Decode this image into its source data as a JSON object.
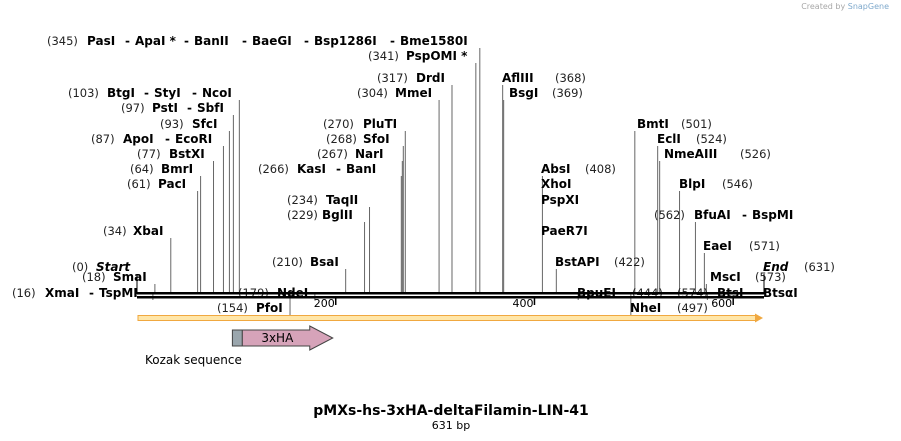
{
  "credit": {
    "prefix": "Created by",
    "brand": "SnapGene"
  },
  "sequence": {
    "name": "pMXs-hs-3xHA-deltaFilamin-LIN-41",
    "length_label": "631 bp",
    "total_bp": 631
  },
  "ends": [
    {
      "pos_label": "(0)",
      "name": "Start",
      "bp": 0
    },
    {
      "pos_label": "(631)",
      "name": "End",
      "bp": 631
    }
  ],
  "sites": [
    {
      "text": "PasI",
      "pos": "(345)",
      "bp": 345,
      "row": 0,
      "star": false,
      "first": true
    },
    {
      "text": "ApaI",
      "bp": 345,
      "row": 0,
      "star": true
    },
    {
      "text": "BanII",
      "bp": 345,
      "row": 0
    },
    {
      "text": "BaeGI",
      "bp": 345,
      "row": 0
    },
    {
      "text": "Bsp1286I",
      "bp": 345,
      "row": 0
    },
    {
      "text": "Bme1580I",
      "bp": 345,
      "row": 0
    },
    {
      "text": "PspOMI",
      "pos": "(341)",
      "bp": 341,
      "row": 1,
      "star": true,
      "first": true
    },
    {
      "text": "DrdI",
      "pos": "(317)",
      "bp": 317,
      "row": 2,
      "first": true
    },
    {
      "text": "AflIII",
      "pos": "(368)",
      "bp": 368,
      "row": 2,
      "first": true,
      "posAfter": true
    },
    {
      "text": "BtgI",
      "pos": "(103)",
      "bp": 103,
      "row": 3,
      "first": true
    },
    {
      "text": "StyI",
      "bp": 103,
      "row": 3
    },
    {
      "text": "NcoI",
      "bp": 103,
      "row": 3
    },
    {
      "text": "MmeI",
      "pos": "(304)",
      "bp": 304,
      "row": 3,
      "first": true
    },
    {
      "text": "BsgI",
      "pos": "(369)",
      "bp": 369,
      "row": 3,
      "first": true,
      "posAfter": true
    },
    {
      "text": "PstI",
      "pos": "(97)",
      "bp": 97,
      "row": 4,
      "first": true
    },
    {
      "text": "SbfI",
      "bp": 97,
      "row": 4
    },
    {
      "text": "SfcI",
      "pos": "(93)",
      "bp": 93,
      "row": 5,
      "first": true
    },
    {
      "text": "PluTI",
      "pos": "(270)",
      "bp": 270,
      "row": 5,
      "first": true
    },
    {
      "text": "BmtI",
      "pos": "(501)",
      "bp": 501,
      "row": 5,
      "first": true,
      "posAfter": true
    },
    {
      "text": "ApoI",
      "pos": "(87)",
      "bp": 87,
      "row": 6,
      "first": true
    },
    {
      "text": "EcoRI",
      "bp": 87,
      "row": 6
    },
    {
      "text": "SfoI",
      "pos": "(268)",
      "bp": 268,
      "row": 6,
      "first": true
    },
    {
      "text": "EclI",
      "pos": "(524)",
      "bp": 524,
      "row": 6,
      "first": true,
      "posAfter": true
    },
    {
      "text": "BstXI",
      "pos": "(77)",
      "bp": 77,
      "row": 7,
      "first": true
    },
    {
      "text": "NarI",
      "pos": "(267)",
      "bp": 267,
      "row": 7,
      "first": true
    },
    {
      "text": "NmeAIII",
      "pos": "(526)",
      "bp": 526,
      "row": 7,
      "first": true,
      "posAfter": true
    },
    {
      "text": "BmrI",
      "pos": "(64)",
      "bp": 64,
      "row": 8,
      "first": true
    },
    {
      "text": "KasI",
      "pos": "(266)",
      "bp": 266,
      "row": 8,
      "first": true
    },
    {
      "text": "BanI",
      "bp": 266,
      "row": 8
    },
    {
      "text": "AbsI",
      "pos": "(408)",
      "bp": 408,
      "row": 8,
      "first": true,
      "posAfter": true
    },
    {
      "text": "PacI",
      "pos": "(61)",
      "bp": 61,
      "row": 9,
      "first": true
    },
    {
      "text": "BlpI",
      "pos": "(546)",
      "bp": 546,
      "row": 9,
      "first": true,
      "posAfter": true
    },
    {
      "text": "XhoI",
      "bp": 408,
      "row": 9,
      "first": true
    },
    {
      "text": "TaqII",
      "pos": "(234)",
      "bp": 234,
      "row": 10,
      "first": true
    },
    {
      "text": "PspXI",
      "bp": 408,
      "row": 10,
      "first": true
    },
    {
      "text": "BglII",
      "pos": "(229)",
      "bp": 229,
      "row": 11,
      "first": true
    },
    {
      "text": "BfuAI",
      "pos": "(562)",
      "bp": 562,
      "row": 11,
      "first": true
    },
    {
      "text": "BspMI",
      "bp": 562,
      "row": 11,
      "posAfter": true
    },
    {
      "text": "XbaI",
      "pos": "(34)",
      "bp": 34,
      "row": 12,
      "first": true
    },
    {
      "text": "PaeR7I",
      "bp": 408,
      "row": 12,
      "first": true
    },
    {
      "text": "EaeI",
      "pos": "(571)",
      "bp": 571,
      "row": 13,
      "first": true,
      "posAfter": true
    },
    {
      "text": "BsaI",
      "pos": "(210)",
      "bp": 210,
      "row": 14,
      "first": true
    },
    {
      "text": "BstAPI",
      "pos": "(422)",
      "bp": 422,
      "row": 14,
      "first": true,
      "posAfter": true
    },
    {
      "text": "SmaI",
      "pos": "(18)",
      "bp": 18,
      "row": 15,
      "first": true
    },
    {
      "text": "MscI",
      "pos": "(573)",
      "bp": 573,
      "row": 15,
      "first": true,
      "posAfter": true
    },
    {
      "text": "XmaI",
      "pos": "(16)",
      "bp": 16,
      "row": 16,
      "first": true
    },
    {
      "text": "TspMI",
      "bp": 16,
      "row": 16
    },
    {
      "text": "NdeI",
      "pos": "(179)",
      "bp": 179,
      "row": 16,
      "first": true
    },
    {
      "text": "BpuEI",
      "pos": "(444)",
      "bp": 444,
      "row": 16,
      "first": true,
      "posAfter": true
    },
    {
      "text": "BtsI",
      "pos": "(574)",
      "bp": 574,
      "row": 16,
      "first": true
    },
    {
      "text": "BtsαI",
      "bp": 574,
      "row": 16,
      "posAfter": true
    },
    {
      "text": "PfoI",
      "pos": "(154)",
      "bp": 154,
      "row": 17,
      "first": true
    },
    {
      "text": "NheI",
      "pos": "(497)",
      "bp": 497,
      "row": 17,
      "first": true,
      "posAfter": true
    }
  ],
  "axis": {
    "ticks": [
      200,
      400,
      600
    ]
  },
  "features": [
    {
      "name": "Kozak sequence",
      "start_bp": 96,
      "end_bp": 106,
      "color": "#9aa6ad",
      "kind": "box"
    },
    {
      "name": "3xHA",
      "start_bp": 106,
      "end_bp": 196,
      "color": "#d6a3b9",
      "kind": "arrow"
    }
  ],
  "orf": {
    "start_bp": 1,
    "end_bp": 630,
    "color": "#f0a840",
    "fill": "#ffe6a8"
  },
  "colors": {
    "line": "#000000",
    "label": "#000000",
    "pos": "#222222"
  }
}
